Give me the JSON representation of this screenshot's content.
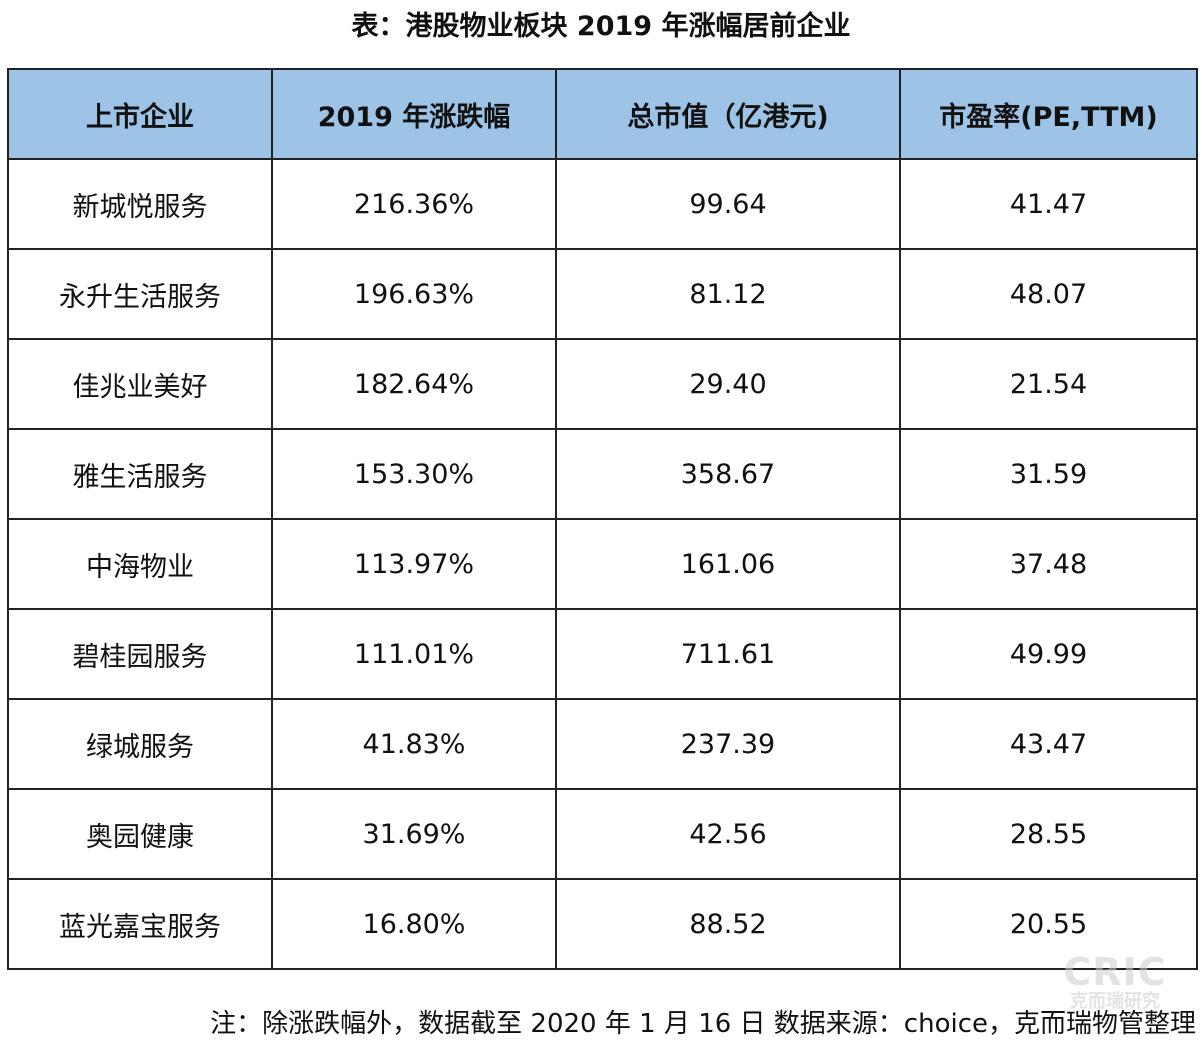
{
  "title": "表：港股物业板块 2019 年涨幅居前企业",
  "table": {
    "headers": [
      "上市企业",
      "2019 年涨跌幅",
      "总市值（亿港元)",
      "市盈率(PE,TTM)"
    ],
    "rows": [
      [
        "新城悦服务",
        "216.36%",
        "99.64",
        "41.47"
      ],
      [
        "永升生活服务",
        "196.63%",
        "81.12",
        "48.07"
      ],
      [
        "佳兆业美好",
        "182.64%",
        "29.40",
        "21.54"
      ],
      [
        "雅生活服务",
        "153.30%",
        "358.67",
        "31.59"
      ],
      [
        "中海物业",
        "113.97%",
        "161.06",
        "37.48"
      ],
      [
        "碧桂园服务",
        "111.01%",
        "711.61",
        "49.99"
      ],
      [
        "绿城服务",
        "41.83%",
        "237.39",
        "43.47"
      ],
      [
        "奥园健康",
        "31.69%",
        "42.56",
        "28.55"
      ],
      [
        "蓝光嘉宝服务",
        "16.80%",
        "88.52",
        "20.55"
      ]
    ]
  },
  "note": "注：除涨跌幅外，数据截至 2020 年 1 月 16 日 数据来源：choice，克而瑞物管整理",
  "watermark": {
    "logo": "CRIC",
    "sub": "克而瑞研究"
  },
  "colors": {
    "header_bg": "#9dc3e6",
    "border": "#222222"
  }
}
